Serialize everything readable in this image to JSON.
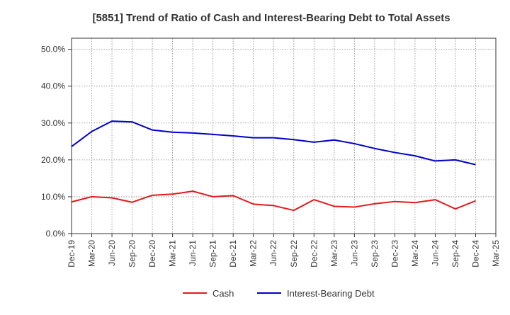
{
  "chart_data": {
    "type": "line",
    "title": "[5851]  Trend of Ratio of Cash and Interest-Bearing Debt to Total Assets",
    "xlabel": "",
    "ylabel": "",
    "categories": [
      "Dec-19",
      "Mar-20",
      "Jun-20",
      "Sep-20",
      "Dec-20",
      "Mar-21",
      "Jun-21",
      "Sep-21",
      "Dec-21",
      "Mar-22",
      "Jun-22",
      "Sep-22",
      "Dec-22",
      "Mar-23",
      "Jun-23",
      "Sep-23",
      "Dec-23",
      "Mar-24",
      "Jun-24",
      "Sep-24",
      "Dec-24",
      "Mar-25"
    ],
    "y_ticks": [
      "0.0%",
      "10.0%",
      "20.0%",
      "30.0%",
      "40.0%",
      "50.0%"
    ],
    "ylim": [
      0,
      53
    ],
    "grid": true,
    "legend_position": "bottom",
    "series": [
      {
        "name": "Cash",
        "color": "#e31a1c",
        "values": [
          8.6,
          10.0,
          9.7,
          8.5,
          10.4,
          10.7,
          11.5,
          10.0,
          10.3,
          8.0,
          7.6,
          6.3,
          9.2,
          7.4,
          7.2,
          8.1,
          8.7,
          8.4,
          9.2,
          6.7,
          8.9,
          null
        ]
      },
      {
        "name": "Interest-Bearing Debt",
        "color": "#0000cc",
        "values": [
          23.6,
          27.7,
          30.5,
          30.3,
          28.1,
          27.5,
          27.3,
          26.9,
          26.5,
          26.0,
          26.0,
          25.5,
          24.8,
          25.4,
          24.4,
          23.1,
          22.0,
          21.1,
          19.7,
          20.0,
          18.7,
          null
        ]
      }
    ]
  }
}
